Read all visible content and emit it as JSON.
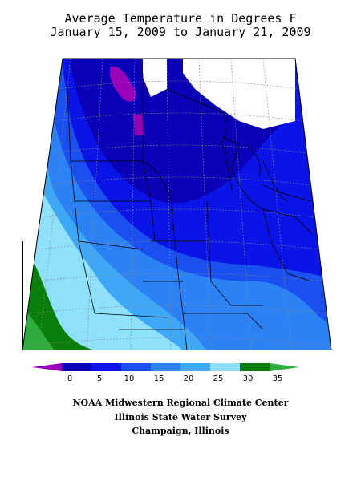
{
  "title": {
    "line1": "Average Temperature in Degrees F",
    "line2": "January 15, 2009 to January 21, 2009"
  },
  "legend": {
    "colors": [
      "#9a00b8",
      "#0a00b8",
      "#0a14e6",
      "#1a50f0",
      "#2a82f5",
      "#3ea8f7",
      "#8ee0fb",
      "#0a7e0a",
      "#2eac3e"
    ],
    "labels": [
      "0",
      "5",
      "10",
      "15",
      "20",
      "25",
      "30",
      "35"
    ]
  },
  "credits": {
    "line1": "NOAA Midwestern Regional Climate Center",
    "line2": "Illinois State Water Survey",
    "line3": "Champaign, Illinois"
  },
  "palette": {
    "below_0": "#9a00b8",
    "0_5": "#0a00b8",
    "5_10": "#0a14e6",
    "10_15": "#1a50f0",
    "15_20": "#2a82f5",
    "20_25": "#3ea8f7",
    "25_30": "#8ee0fb",
    "30_35": "#0a7e0a",
    "above_35": "#2eac3e"
  }
}
